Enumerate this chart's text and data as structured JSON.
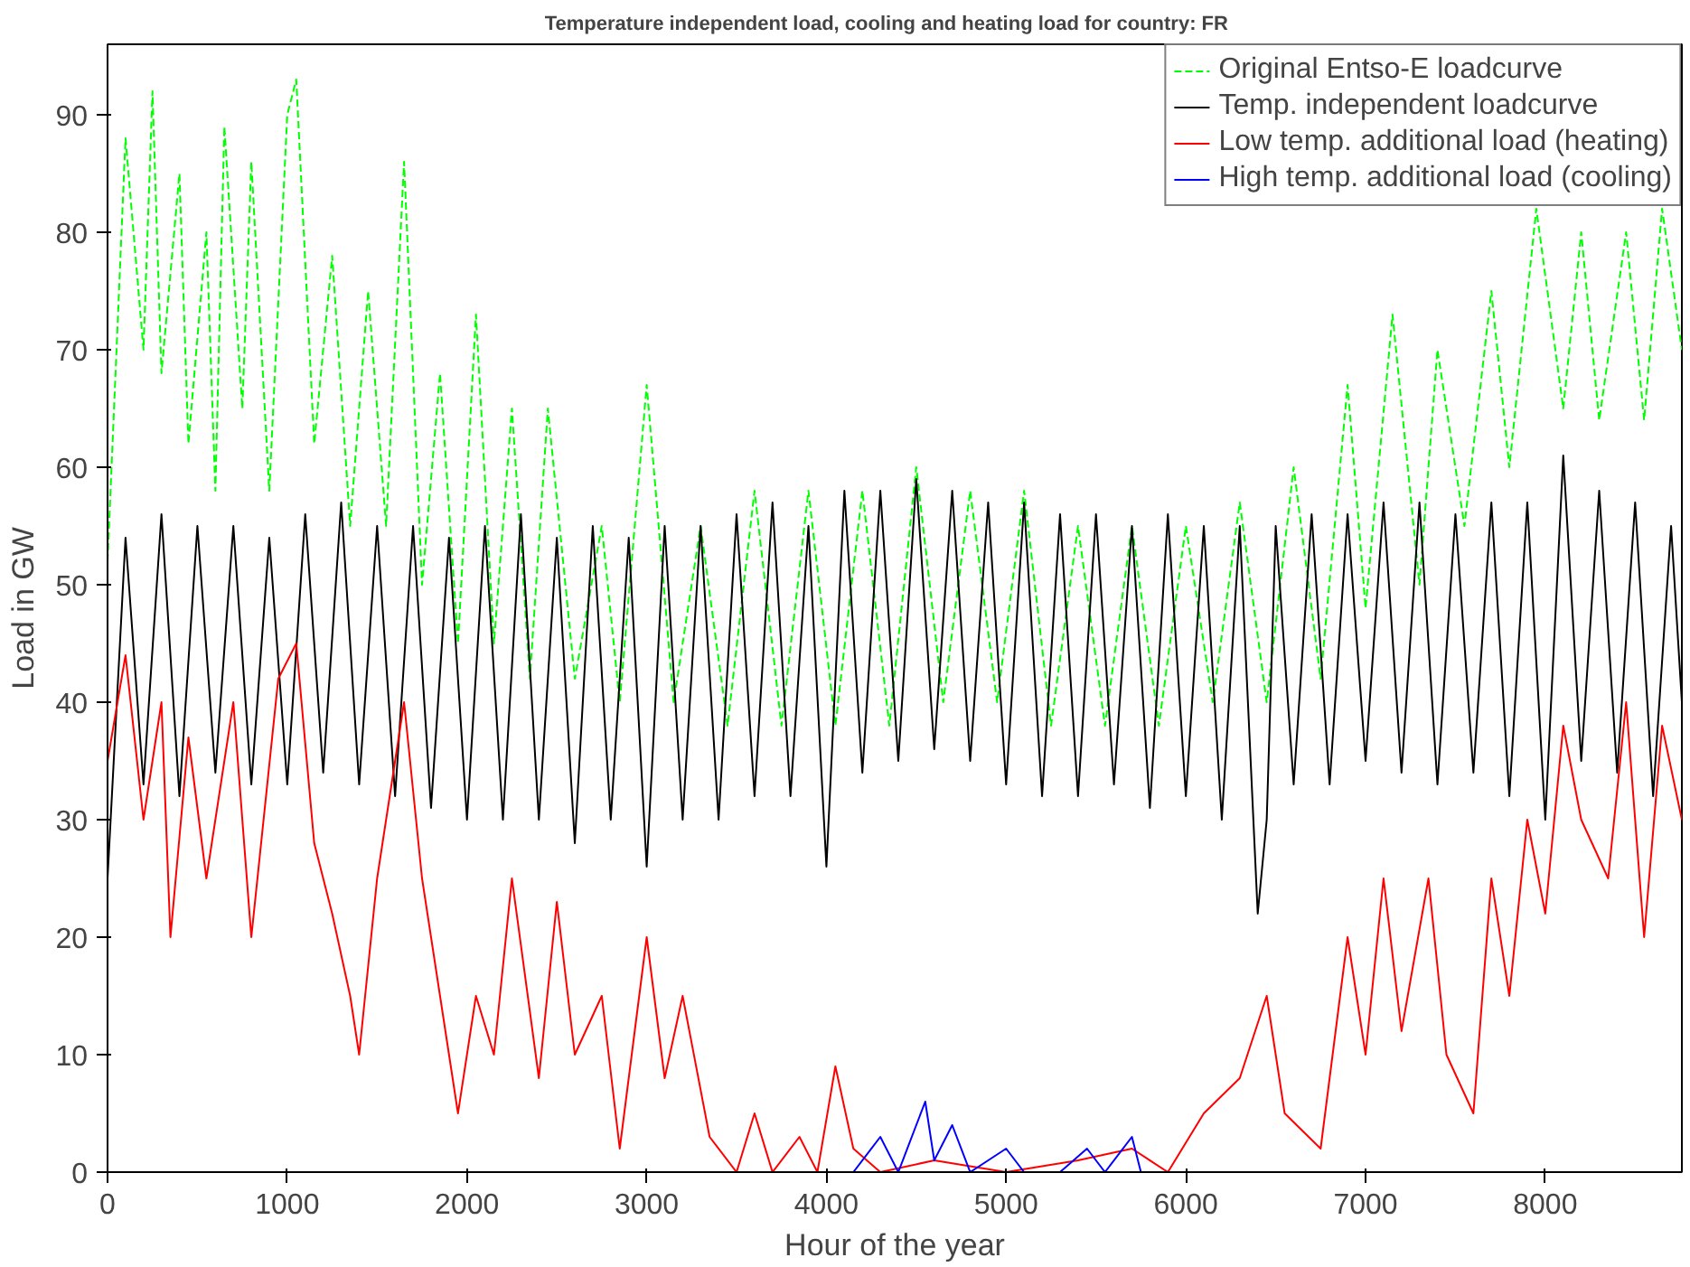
{
  "chart_data": {
    "type": "line",
    "title": "Temperature independent load, cooling and heating load for country:    FR",
    "xlabel": "Hour of the year",
    "ylabel": "Load in GW",
    "xlim": [
      0,
      8760
    ],
    "ylim": [
      0,
      96
    ],
    "xticks": [
      0,
      1000,
      2000,
      3000,
      4000,
      5000,
      6000,
      7000,
      8000
    ],
    "yticks": [
      0,
      10,
      20,
      30,
      40,
      50,
      60,
      70,
      80,
      90
    ],
    "grid": false,
    "legend": "top right",
    "marker": "none",
    "series": [
      {
        "name": "Original Entso-E loadcurve",
        "color": "#00ff00",
        "line_style": "dashed",
        "x": [
          0,
          100,
          200,
          250,
          300,
          400,
          450,
          550,
          600,
          650,
          750,
          800,
          900,
          1000,
          1050,
          1150,
          1250,
          1350,
          1450,
          1550,
          1650,
          1750,
          1850,
          1950,
          2050,
          2150,
          2250,
          2350,
          2450,
          2600,
          2750,
          2850,
          3000,
          3150,
          3300,
          3450,
          3600,
          3750,
          3900,
          4050,
          4200,
          4350,
          4500,
          4650,
          4800,
          4950,
          5100,
          5250,
          5400,
          5550,
          5700,
          5850,
          6000,
          6150,
          6300,
          6450,
          6600,
          6750,
          6900,
          7000,
          7150,
          7300,
          7400,
          7550,
          7700,
          7800,
          7950,
          8100,
          8200,
          8300,
          8450,
          8550,
          8650,
          8760
        ],
        "values": [
          52,
          88,
          70,
          92,
          68,
          85,
          62,
          80,
          58,
          89,
          65,
          86,
          58,
          90,
          93,
          62,
          78,
          55,
          75,
          55,
          86,
          50,
          68,
          45,
          73,
          45,
          65,
          42,
          65,
          42,
          55,
          40,
          67,
          40,
          55,
          38,
          58,
          38,
          58,
          38,
          58,
          38,
          60,
          40,
          58,
          40,
          58,
          38,
          55,
          38,
          55,
          38,
          55,
          40,
          57,
          40,
          60,
          42,
          67,
          48,
          73,
          50,
          70,
          55,
          75,
          60,
          82,
          65,
          80,
          64,
          80,
          64,
          82,
          70
        ]
      },
      {
        "name": "Temp. independent loadcurve",
        "color": "#000000",
        "line_style": "solid",
        "x": [
          0,
          100,
          200,
          300,
          400,
          500,
          600,
          700,
          800,
          900,
          1000,
          1100,
          1200,
          1300,
          1400,
          1500,
          1600,
          1700,
          1800,
          1900,
          2000,
          2100,
          2200,
          2300,
          2400,
          2500,
          2600,
          2700,
          2800,
          2900,
          3000,
          3100,
          3200,
          3300,
          3400,
          3500,
          3600,
          3700,
          3800,
          3900,
          4000,
          4100,
          4200,
          4300,
          4400,
          4500,
          4600,
          4700,
          4800,
          4900,
          5000,
          5100,
          5200,
          5300,
          5400,
          5500,
          5600,
          5700,
          5800,
          5900,
          6000,
          6100,
          6200,
          6300,
          6400,
          6450,
          6500,
          6600,
          6700,
          6800,
          6900,
          7000,
          7100,
          7200,
          7300,
          7400,
          7500,
          7600,
          7700,
          7800,
          7900,
          8000,
          8100,
          8200,
          8300,
          8400,
          8500,
          8600,
          8700,
          8760
        ],
        "values": [
          25,
          54,
          33,
          56,
          32,
          55,
          34,
          55,
          33,
          54,
          33,
          56,
          34,
          57,
          33,
          55,
          32,
          55,
          31,
          54,
          30,
          55,
          30,
          56,
          30,
          54,
          28,
          55,
          30,
          54,
          26,
          55,
          30,
          55,
          30,
          56,
          32,
          57,
          32,
          55,
          26,
          58,
          34,
          58,
          35,
          59,
          36,
          58,
          35,
          57,
          33,
          57,
          32,
          56,
          32,
          56,
          33,
          55,
          31,
          56,
          32,
          55,
          30,
          55,
          22,
          30,
          55,
          33,
          56,
          33,
          56,
          35,
          57,
          34,
          57,
          33,
          56,
          34,
          57,
          32,
          57,
          30,
          61,
          35,
          58,
          34,
          57,
          32,
          55,
          40
        ]
      },
      {
        "name": "Low temp. additional load (heating)",
        "color": "#ff0000",
        "line_style": "solid",
        "x": [
          0,
          100,
          200,
          300,
          350,
          450,
          550,
          700,
          800,
          950,
          1050,
          1150,
          1250,
          1350,
          1400,
          1500,
          1650,
          1750,
          1850,
          1950,
          2050,
          2150,
          2250,
          2400,
          2500,
          2600,
          2750,
          2850,
          3000,
          3100,
          3200,
          3350,
          3500,
          3600,
          3700,
          3850,
          3950,
          4050,
          4150,
          4300,
          4600,
          5000,
          5400,
          5700,
          5900,
          6100,
          6300,
          6450,
          6550,
          6750,
          6900,
          7000,
          7100,
          7200,
          7350,
          7450,
          7600,
          7700,
          7800,
          7900,
          8000,
          8100,
          8200,
          8350,
          8450,
          8550,
          8650,
          8760
        ],
        "values": [
          35,
          44,
          30,
          40,
          20,
          37,
          25,
          40,
          20,
          42,
          45,
          28,
          22,
          15,
          10,
          25,
          40,
          25,
          15,
          5,
          15,
          10,
          25,
          8,
          23,
          10,
          15,
          2,
          20,
          8,
          15,
          3,
          0,
          5,
          0,
          3,
          0,
          9,
          2,
          0,
          1,
          0,
          1,
          2,
          0,
          5,
          8,
          15,
          5,
          2,
          20,
          10,
          25,
          12,
          25,
          10,
          5,
          25,
          15,
          30,
          22,
          38,
          30,
          25,
          40,
          20,
          38,
          30
        ]
      },
      {
        "name": "High temp. additional load (cooling)",
        "color": "#0000ff",
        "line_style": "solid",
        "x": [
          4150,
          4300,
          4400,
          4500,
          4550,
          4600,
          4700,
          4800,
          5000,
          5100,
          5300,
          5450,
          5550,
          5700,
          5750
        ],
        "values": [
          0,
          3,
          0,
          4,
          6,
          1,
          4,
          0,
          2,
          0,
          0,
          2,
          0,
          3,
          0
        ]
      }
    ]
  }
}
